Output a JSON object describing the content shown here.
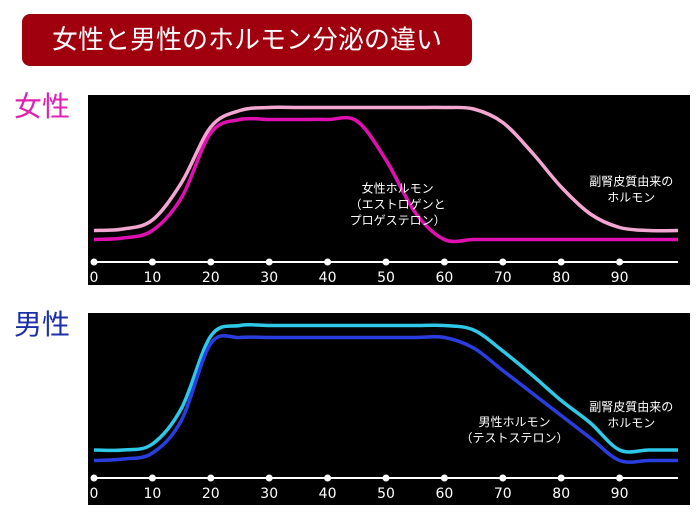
{
  "title": "女性と男性のホルモン分泌の違い",
  "chart_data": [
    {
      "type": "line",
      "title": "女性",
      "title_color": "#e020b0",
      "x": [
        0,
        5,
        10,
        15,
        20,
        25,
        30,
        35,
        40,
        45,
        50,
        55,
        60,
        65,
        70,
        75,
        80,
        85,
        90,
        95,
        100
      ],
      "series": [
        {
          "color": "#f4a6d2",
          "values": [
            13,
            14,
            20,
            45,
            82,
            93,
            95,
            95,
            95,
            95,
            95,
            95,
            95,
            94,
            85,
            65,
            42,
            24,
            15,
            13,
            13
          ]
        },
        {
          "color": "#e010b0",
          "values": [
            7,
            8,
            13,
            35,
            78,
            87,
            87,
            87,
            87,
            86,
            60,
            25,
            7,
            7,
            7,
            7,
            7,
            7,
            7,
            7,
            7
          ]
        }
      ],
      "xlim": [
        0,
        100
      ],
      "ylim": [
        0,
        100
      ],
      "xticks": [
        0,
        10,
        20,
        30,
        40,
        50,
        60,
        70,
        80,
        90
      ],
      "annotations": [
        {
          "lines": [
            "女性ホルモン",
            "（エストロゲンと",
            "プロゲステロン）"
          ],
          "x": 52,
          "y": 30
        },
        {
          "lines": [
            "副腎皮質由来の",
            "ホルモン"
          ],
          "x": 92,
          "y": 40
        }
      ]
    },
    {
      "type": "line",
      "title": "男性",
      "title_color": "#1c2fa8",
      "x": [
        0,
        5,
        10,
        15,
        20,
        25,
        30,
        35,
        40,
        45,
        50,
        55,
        60,
        65,
        70,
        75,
        80,
        85,
        90,
        95,
        100
      ],
      "series": [
        {
          "color": "#2ec8e8",
          "values": [
            12,
            12,
            16,
            40,
            88,
            95,
            95,
            95,
            95,
            95,
            95,
            95,
            95,
            92,
            78,
            62,
            45,
            30,
            12,
            12,
            12
          ]
        },
        {
          "color": "#2a3ee0",
          "values": [
            5,
            6,
            10,
            32,
            83,
            87,
            87,
            87,
            87,
            87,
            87,
            87,
            87,
            80,
            65,
            50,
            35,
            20,
            5,
            5,
            5
          ]
        }
      ],
      "xlim": [
        0,
        100
      ],
      "ylim": [
        0,
        100
      ],
      "xticks": [
        0,
        10,
        20,
        30,
        40,
        50,
        60,
        70,
        80,
        90
      ],
      "annotations": [
        {
          "lines": [
            "男性ホルモン",
            "（テストステロン）"
          ],
          "x": 72,
          "y": 25
        },
        {
          "lines": [
            "副腎皮質由来の",
            "ホルモン"
          ],
          "x": 92,
          "y": 35
        }
      ]
    }
  ]
}
